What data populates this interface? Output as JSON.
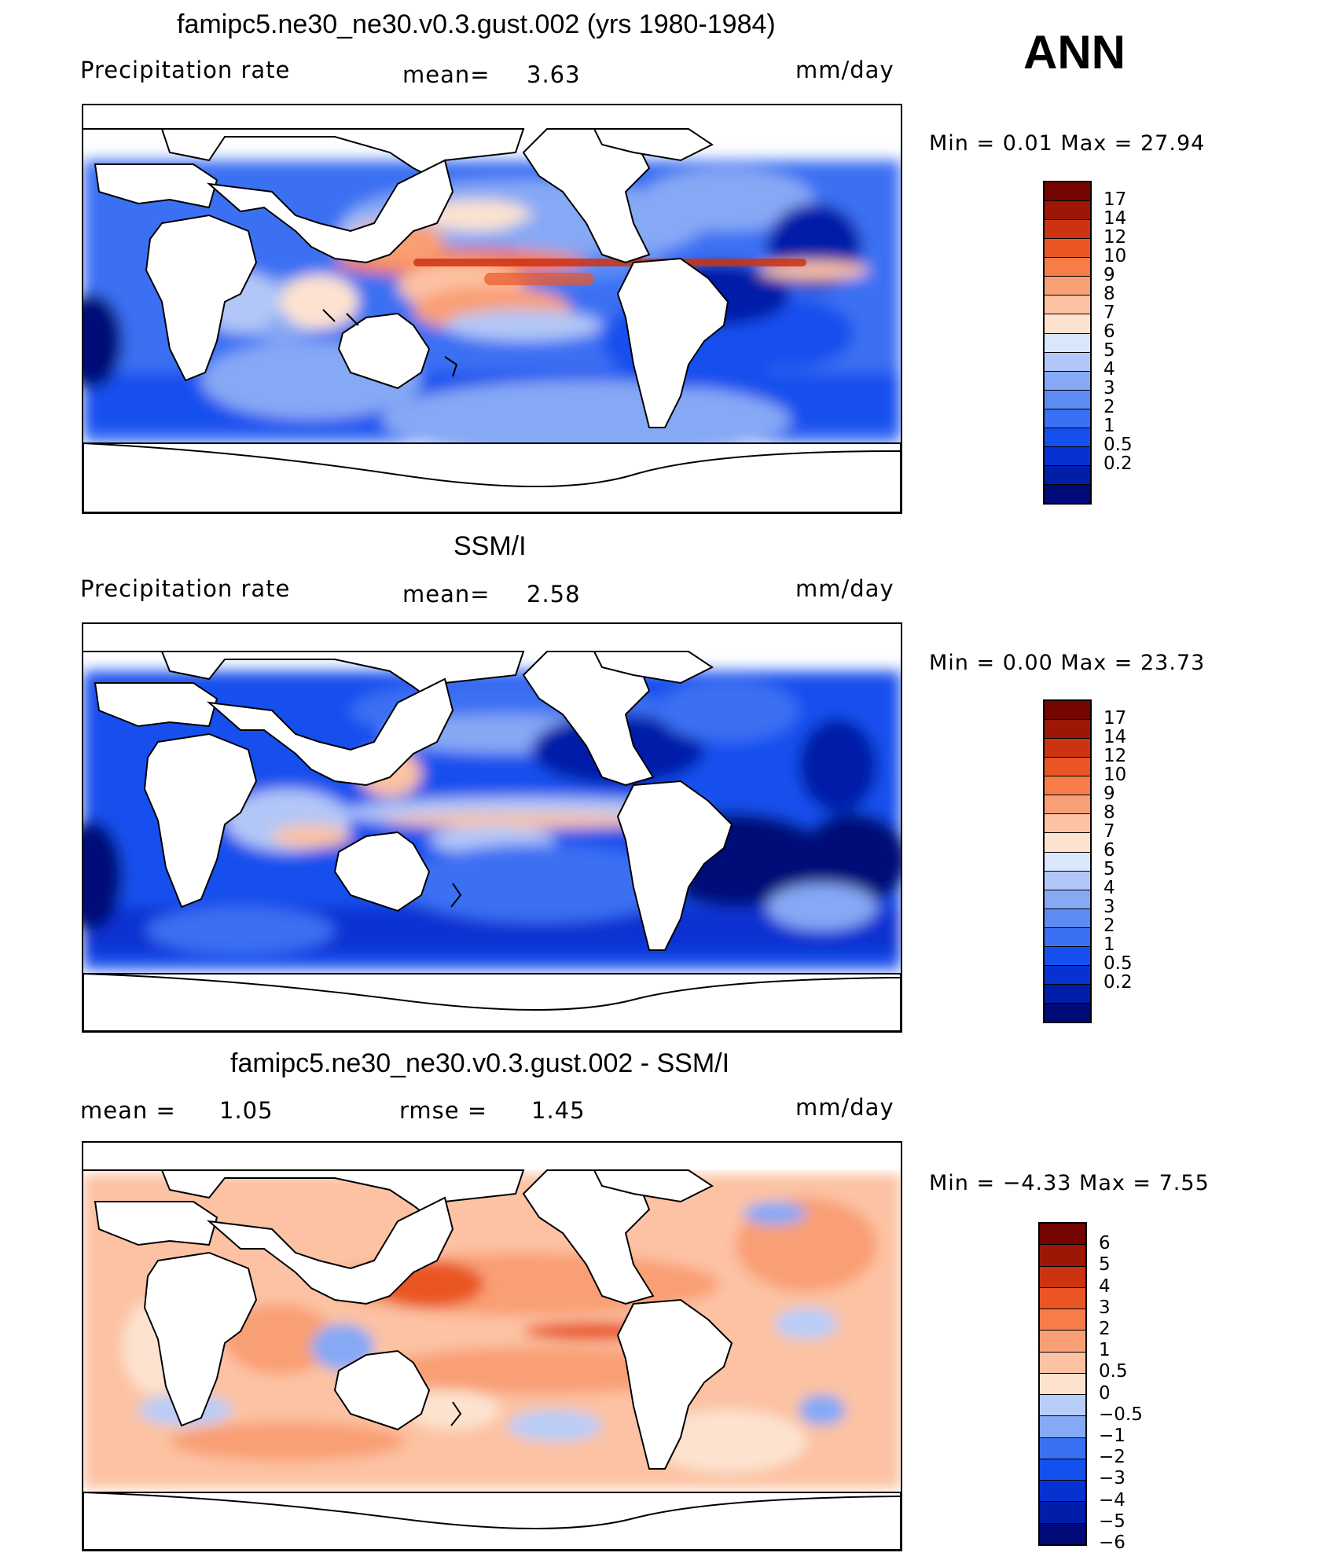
{
  "season": "ANN",
  "colors": {
    "precip": [
      "#000a78",
      "#001ea8",
      "#0732d2",
      "#1450ee",
      "#3a70f3",
      "#5c8bf3",
      "#86a9f5",
      "#b2c7f7",
      "#d9e6fb",
      "#fde3cf",
      "#fcc2a3",
      "#f99f75",
      "#f67c48",
      "#ea5623",
      "#cc3311",
      "#9c1705",
      "#740500"
    ],
    "diff": [
      "#000a78",
      "#001ea8",
      "#0732d2",
      "#1450ee",
      "#3a70f3",
      "#86a9f5",
      "#b8cdf8",
      "#fde3cf",
      "#fcc2a3",
      "#f99f75",
      "#f67c48",
      "#ea5623",
      "#cc3311",
      "#9c1705",
      "#740500"
    ]
  },
  "panels": [
    {
      "title": "famipc5.ne30_ne30.v0.3.gust.002 (yrs 1980-1984)",
      "left_label": "Precipitation  rate",
      "mid_label": "mean=",
      "mid_value": "3.63",
      "units": "mm/day",
      "minmax": "Min  =     0.01  Max  =    27.94",
      "ticks": [
        "17",
        "14",
        "12",
        "10",
        "9",
        "8",
        "7",
        "6",
        "5",
        "4",
        "3",
        "2",
        "1",
        "0.5",
        "0.2"
      ]
    },
    {
      "title": "SSM/I",
      "left_label": "Precipitation  rate",
      "mid_label": "mean=",
      "mid_value": "2.58",
      "units": "mm/day",
      "minmax": "Min  =     0.00  Max  =    23.73",
      "ticks": [
        "17",
        "14",
        "12",
        "10",
        "9",
        "8",
        "7",
        "6",
        "5",
        "4",
        "3",
        "2",
        "1",
        "0.5",
        "0.2"
      ]
    },
    {
      "title": "famipc5.ne30_ne30.v0.3.gust.002 - SSM/I",
      "left_label": "mean  =",
      "left_value": "1.05",
      "mid_label": "rmse  =",
      "mid_value": "1.45",
      "units": "mm/day",
      "minmax": "Min  =   −4.33  Max  =      7.55",
      "ticks": [
        "6",
        "5",
        "4",
        "3",
        "2",
        "1",
        "0.5",
        "0",
        "−0.5",
        "−1",
        "−2",
        "−3",
        "−4",
        "−5",
        "−6"
      ]
    }
  ]
}
